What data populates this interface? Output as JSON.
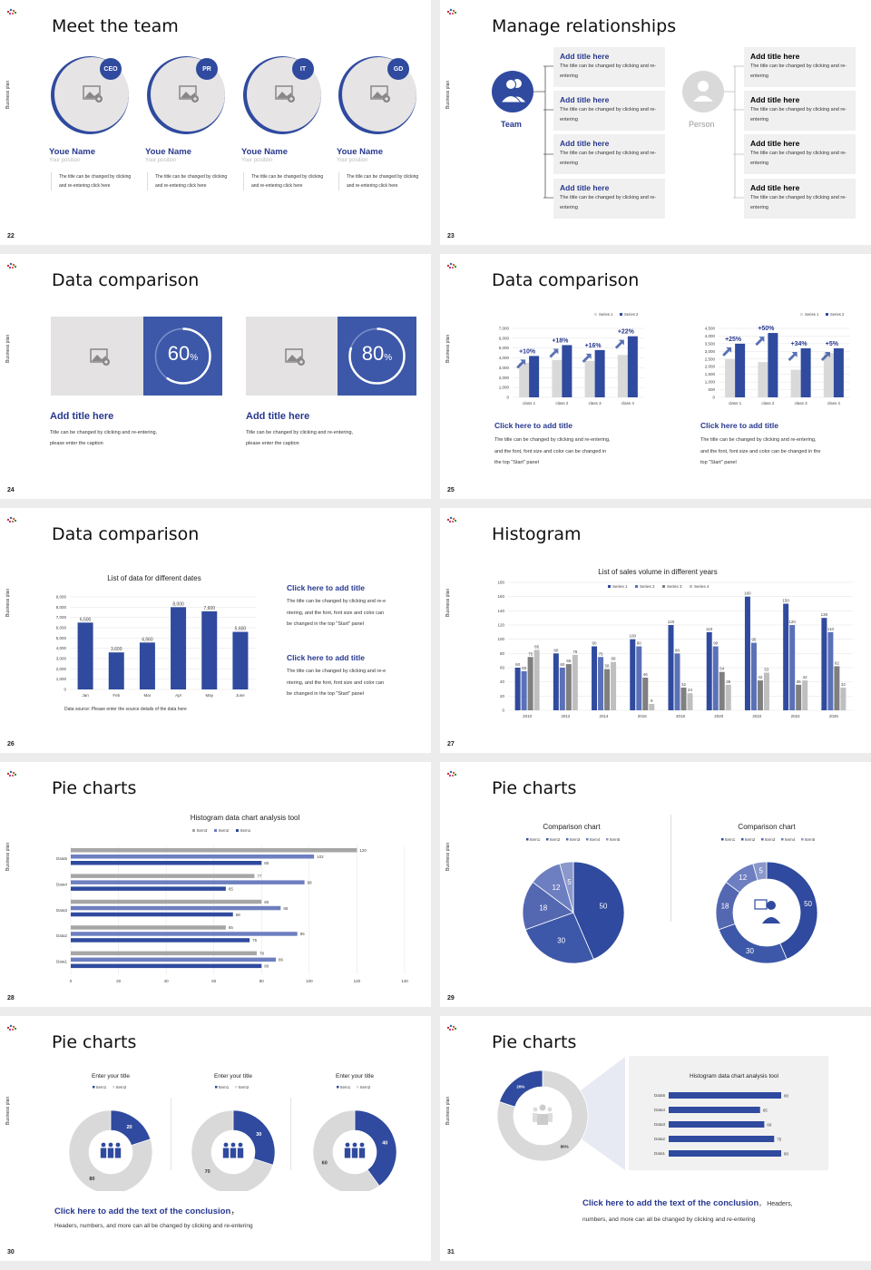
{
  "common": {
    "side_label": "Business plan",
    "accent": "#2f4a9e",
    "accent_dark": "#27388e",
    "light_gray": "#d9d9d9"
  },
  "slide22": {
    "page": "22",
    "title": "Meet the team",
    "members": [
      {
        "badge": "CEO",
        "name": "Youe Name",
        "position": "Your position",
        "desc": "The title can be changed by clicking and re-entering click here"
      },
      {
        "badge": "PR",
        "name": "Youe Name",
        "position": "Your position",
        "desc": "The title can be changed by clicking and re-entering click here"
      },
      {
        "badge": "IT",
        "name": "Youe Name",
        "position": "Your position",
        "desc": "The title can be changed by clicking and re-entering click here"
      },
      {
        "badge": "GD",
        "name": "Youe Name",
        "position": "Your position",
        "desc": "The title can be changed by clicking and re-entering click here"
      }
    ]
  },
  "slide23": {
    "page": "23",
    "title": "Manage relationships",
    "team_label": "Team",
    "person_label": "Person",
    "team_cards": [
      {
        "title": "Add title here",
        "desc": "The title can be changed by clicking and re-entering"
      },
      {
        "title": "Add title here",
        "desc": "The title can be changed by clicking and re-entering"
      },
      {
        "title": "Add title here",
        "desc": "The title can be changed by clicking and re-entering"
      },
      {
        "title": "Add title here",
        "desc": "The title can be changed by clicking and re-entering"
      }
    ],
    "person_cards": [
      {
        "title": "Add title here",
        "desc": "The title can be changed by clicking and re-entering"
      },
      {
        "title": "Add title here",
        "desc": "The title can be changed by clicking and re-entering"
      },
      {
        "title": "Add title here",
        "desc": "The title can be changed by clicking and re-entering"
      },
      {
        "title": "Add title here",
        "desc": "The title can be changed by clicking and re-entering"
      }
    ]
  },
  "slide24": {
    "page": "24",
    "title": "Data comparison",
    "items": [
      {
        "value": "60",
        "unit": "%",
        "percent": 60,
        "title": "Add title here",
        "desc1": "Title can be changed by clicking and re-entering,",
        "desc2": "please enter the caption"
      },
      {
        "value": "80",
        "unit": "%",
        "percent": 80,
        "title": "Add title here",
        "desc1": "Title can be changed by clicking and re-entering,",
        "desc2": "please enter the caption"
      }
    ]
  },
  "slide25": {
    "page": "25",
    "title": "Data comparison",
    "blocks": [
      {
        "title": "Click here to add title",
        "desc1": "The title can be changed by clicking and re-entering,",
        "desc2": "and the font, font size and color can be changed in",
        "desc3": "the top \"Start\" panel"
      },
      {
        "title": "Click here to add title",
        "desc1": "The title can be changed by clicking and re-entering,",
        "desc2": "and the font, font size and color can be changed in the",
        "desc3": "top \"Start\" panel"
      }
    ]
  },
  "slide26": {
    "page": "26",
    "title": "Data comparison",
    "source": "Data source: Please enter the source details of the data here",
    "blocks": [
      {
        "title": "Click here to add title",
        "desc1": "The title can be changed by clicking and re-e",
        "desc2": "ntering, and the font, font size and color can",
        "desc3": "be changed in the top \"Start\" panel"
      },
      {
        "title": "Click here to add title",
        "desc1": "The title can be changed by clicking and re-e",
        "desc2": "ntering, and the font, font size and color can",
        "desc3": "be changed in the top \"Start\" panel"
      }
    ]
  },
  "slide27": {
    "page": "27",
    "title": "Histogram"
  },
  "slide28": {
    "page": "28",
    "title": "Pie charts"
  },
  "slide29": {
    "page": "29",
    "title": "Pie charts"
  },
  "slide30": {
    "page": "30",
    "title": "Pie charts",
    "conclusion_title": "Click here to add the text of the conclusion",
    "conclusion_comma": "，",
    "conclusion_desc": "Headers, numbers, and more can all be changed by clicking and re-entering"
  },
  "slide31": {
    "page": "31",
    "title": "Pie charts",
    "conclusion_title": "Click here to add the text of the conclusion",
    "conclusion_tail": "， Headers,",
    "conclusion_desc": "numbers, and more can all be changed by clicking and re-entering",
    "donut_labels": {
      "big": "80%",
      "small": "20%"
    }
  },
  "chart_data": [
    {
      "id": "slide25-left",
      "type": "bar",
      "categories": [
        "class 1",
        "class 2",
        "class 3",
        "class 4"
      ],
      "series": [
        {
          "name": "Series 1",
          "values": [
            3500,
            3800,
            3700,
            4300
          ]
        },
        {
          "name": "Series 2",
          "values": [
            4200,
            5300,
            4800,
            6200
          ]
        }
      ],
      "annotations": [
        "+10%",
        "+18%",
        "+16%",
        "+22%"
      ],
      "ylim": [
        0,
        7000
      ],
      "yticks": [
        "0",
        "1,000",
        "2,000",
        "3,000",
        "4,000",
        "5,000",
        "6,000",
        "7,000"
      ],
      "legend_position": "top-right"
    },
    {
      "id": "slide25-right",
      "type": "bar",
      "categories": [
        "class 1",
        "class 2",
        "class 3",
        "class 4"
      ],
      "series": [
        {
          "name": "Series 1",
          "values": [
            2500,
            2300,
            1800,
            2900
          ]
        },
        {
          "name": "Series 2",
          "values": [
            3500,
            4200,
            3200,
            3200
          ]
        }
      ],
      "annotations": [
        "+25%",
        "+50%",
        "+34%",
        "+5%"
      ],
      "ylim": [
        0,
        4500
      ],
      "yticks": [
        "0",
        "500",
        "1,000",
        "1,500",
        "2,000",
        "2,500",
        "3,000",
        "3,500",
        "4,000",
        "4,500"
      ],
      "legend_position": "top-right"
    },
    {
      "id": "slide26",
      "type": "bar",
      "title": "List of data for different dates",
      "categories": [
        "Jan",
        "Feb",
        "Mar",
        "Apr",
        "May",
        "June"
      ],
      "values": [
        6500,
        3600,
        4560,
        8000,
        7600,
        5600
      ],
      "labels": [
        "6,500",
        "3,600",
        "4,560",
        "8,000",
        "7,600",
        "5,600"
      ],
      "ylim": [
        0,
        9000
      ],
      "yticks": [
        "0",
        "1,000",
        "2,000",
        "3,000",
        "4,000",
        "5,000",
        "6,000",
        "7,000",
        "8,000",
        "9,000"
      ]
    },
    {
      "id": "slide27",
      "type": "bar",
      "title": "List of sales volume in different years",
      "categories": [
        "2010",
        "2012",
        "2014",
        "2016",
        "2018",
        "2020",
        "2022",
        "2024",
        "2026"
      ],
      "series": [
        {
          "name": "Series 1",
          "values": [
            60,
            80,
            90,
            100,
            120,
            110,
            160,
            150,
            130
          ]
        },
        {
          "name": "Series 2",
          "values": [
            55,
            60,
            75,
            90,
            80,
            90,
            95,
            120,
            110
          ]
        },
        {
          "name": "Series 3",
          "values": [
            75,
            65,
            58,
            46,
            32,
            54,
            42,
            36,
            62
          ]
        },
        {
          "name": "Series 4",
          "values": [
            85,
            78,
            68,
            9,
            24,
            36,
            53,
            42,
            32
          ]
        }
      ],
      "ylim": [
        0,
        180
      ],
      "yticks": [
        "0",
        "20",
        "40",
        "60",
        "80",
        "100",
        "120",
        "140",
        "160",
        "180"
      ],
      "legend_position": "top"
    },
    {
      "id": "slide28",
      "type": "bar",
      "orientation": "horizontal",
      "title": "Histogram data chart analysis tool",
      "categories": [
        "Data1",
        "Data2",
        "Data3",
        "Data4",
        "Data5"
      ],
      "series": [
        {
          "name": "Item3",
          "values": [
            78,
            65,
            80,
            77,
            120
          ]
        },
        {
          "name": "Item2",
          "values": [
            86,
            95,
            88,
            98,
            102
          ]
        },
        {
          "name": "Item1",
          "values": [
            80,
            75,
            68,
            65,
            80
          ]
        }
      ],
      "xlim": [
        0,
        140
      ],
      "xticks": [
        "0",
        "20",
        "40",
        "60",
        "80",
        "100",
        "120",
        "140"
      ],
      "legend_position": "top"
    },
    {
      "id": "slide29-pie",
      "type": "pie",
      "title": "Comparison chart",
      "categories": [
        "Item1",
        "Item2",
        "Item3",
        "Item4",
        "Item5"
      ],
      "values": [
        50,
        30,
        18,
        12,
        5
      ]
    },
    {
      "id": "slide29-donut",
      "type": "pie",
      "title": "Comparison chart",
      "donut": true,
      "categories": [
        "Item1",
        "Item2",
        "Item3",
        "Item4",
        "Item5"
      ],
      "values": [
        50,
        30,
        18,
        12,
        5
      ]
    },
    {
      "id": "slide30-a",
      "type": "pie",
      "donut": true,
      "title": "Enter your title",
      "categories": [
        "Item1",
        "Item2"
      ],
      "values": [
        20,
        80
      ]
    },
    {
      "id": "slide30-b",
      "type": "pie",
      "donut": true,
      "title": "Enter your title",
      "categories": [
        "Item1",
        "Item2"
      ],
      "values": [
        30,
        70
      ]
    },
    {
      "id": "slide30-c",
      "type": "pie",
      "donut": true,
      "title": "Enter your title",
      "categories": [
        "Item1",
        "Item2"
      ],
      "values": [
        40,
        60
      ]
    },
    {
      "id": "slide31-donut",
      "type": "pie",
      "donut": true,
      "categories": [
        "a",
        "b"
      ],
      "values": [
        80,
        20
      ],
      "labels": [
        "80%",
        "20%"
      ]
    },
    {
      "id": "slide31-bars",
      "type": "bar",
      "orientation": "horizontal",
      "title": "Histogram data chart analysis tool",
      "categories": [
        "Data1",
        "Data2",
        "Data3",
        "Data4",
        "Data5"
      ],
      "values": [
        80,
        75,
        68,
        65,
        80
      ]
    }
  ]
}
